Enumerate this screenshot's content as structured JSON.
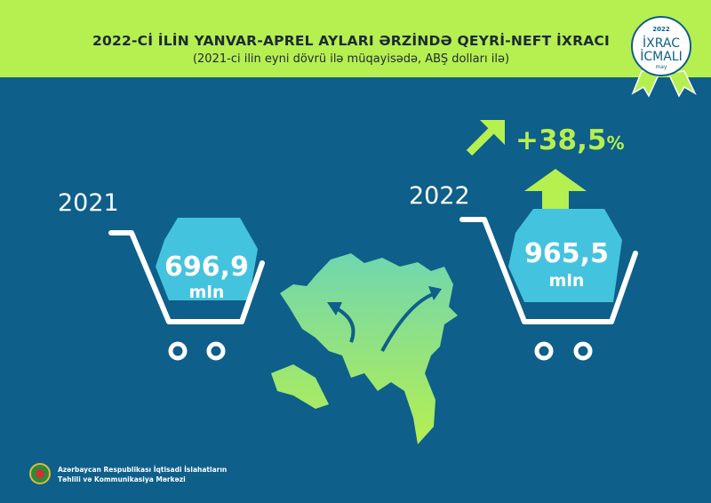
{
  "header": {
    "title": "2022-Cİ İLİN YANVAR-APREL AYLARI ƏRZİNDƏ QEYRİ-NEFT İXRACI",
    "subtitle": "(2021-ci ilin eyni dövrü ilə müqayisədə, ABŞ dolları ilə)"
  },
  "badge": {
    "year": "2022",
    "line1": "İXRAC",
    "line2": "İCMALI",
    "month": "may"
  },
  "left": {
    "year": "2021",
    "value": "696,9",
    "unit": "mln"
  },
  "right": {
    "year": "2022",
    "value": "965,5",
    "unit": "mln"
  },
  "change": {
    "value": "+38,5",
    "unit": "%"
  },
  "footer": {
    "line1": "Azərbaycan Respublikası İqtisadi İslahatların",
    "line2": "Təhlili və Kommunikasiya Mərkəzi"
  },
  "colors": {
    "background": "#0e5f8a",
    "accent": "#b6ef50",
    "bubble": "#44c3df"
  }
}
